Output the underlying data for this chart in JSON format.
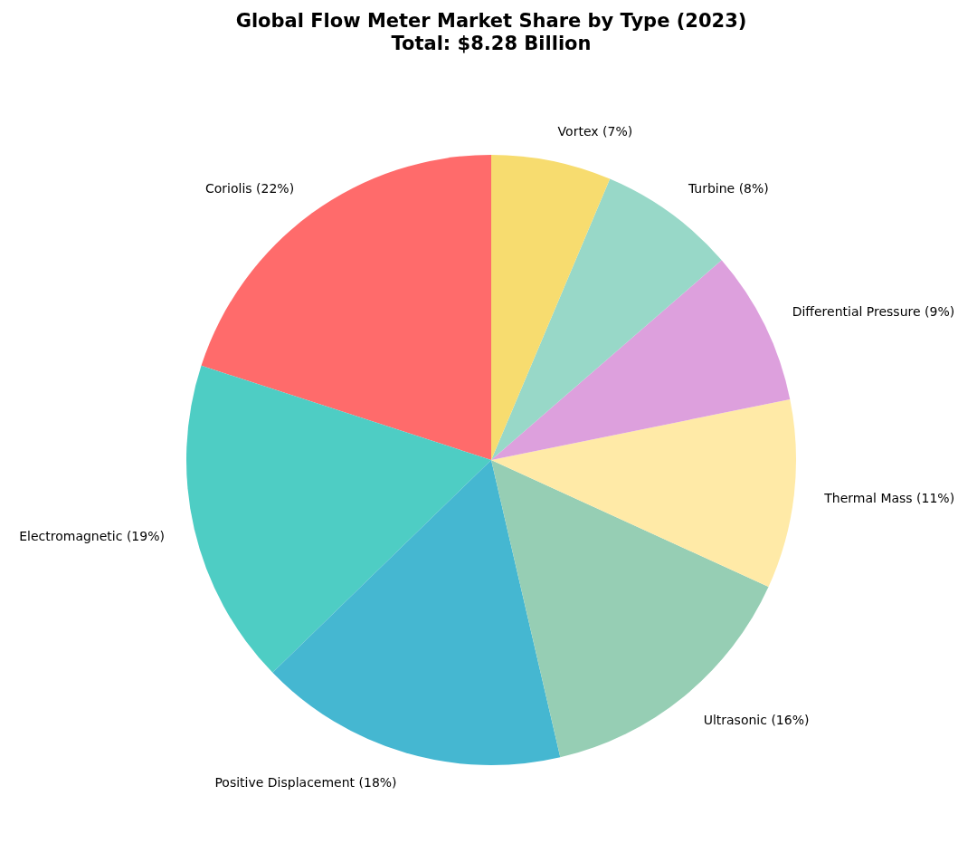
{
  "chart_data": {
    "type": "pie",
    "title": "Global Flow Meter Market Share by Type (2023)\nTotal: $8.28 Billion",
    "categories": [
      "Coriolis (22%)",
      "Electromagnetic (19%)",
      "Positive Displacement (18%)",
      "Ultrasonic (16%)",
      "Thermal Mass (11%)",
      "Differential Pressure (9%)",
      "Turbine (8%)",
      "Vortex (7%)"
    ],
    "values": [
      22,
      19,
      18,
      16,
      11,
      9,
      8,
      7
    ],
    "colors": [
      "#ff6b6b",
      "#4ecdc4",
      "#45b7d1",
      "#96ceb4",
      "#ffeaa7",
      "#dda0dd",
      "#98d8c8",
      "#f7dc6f"
    ]
  }
}
